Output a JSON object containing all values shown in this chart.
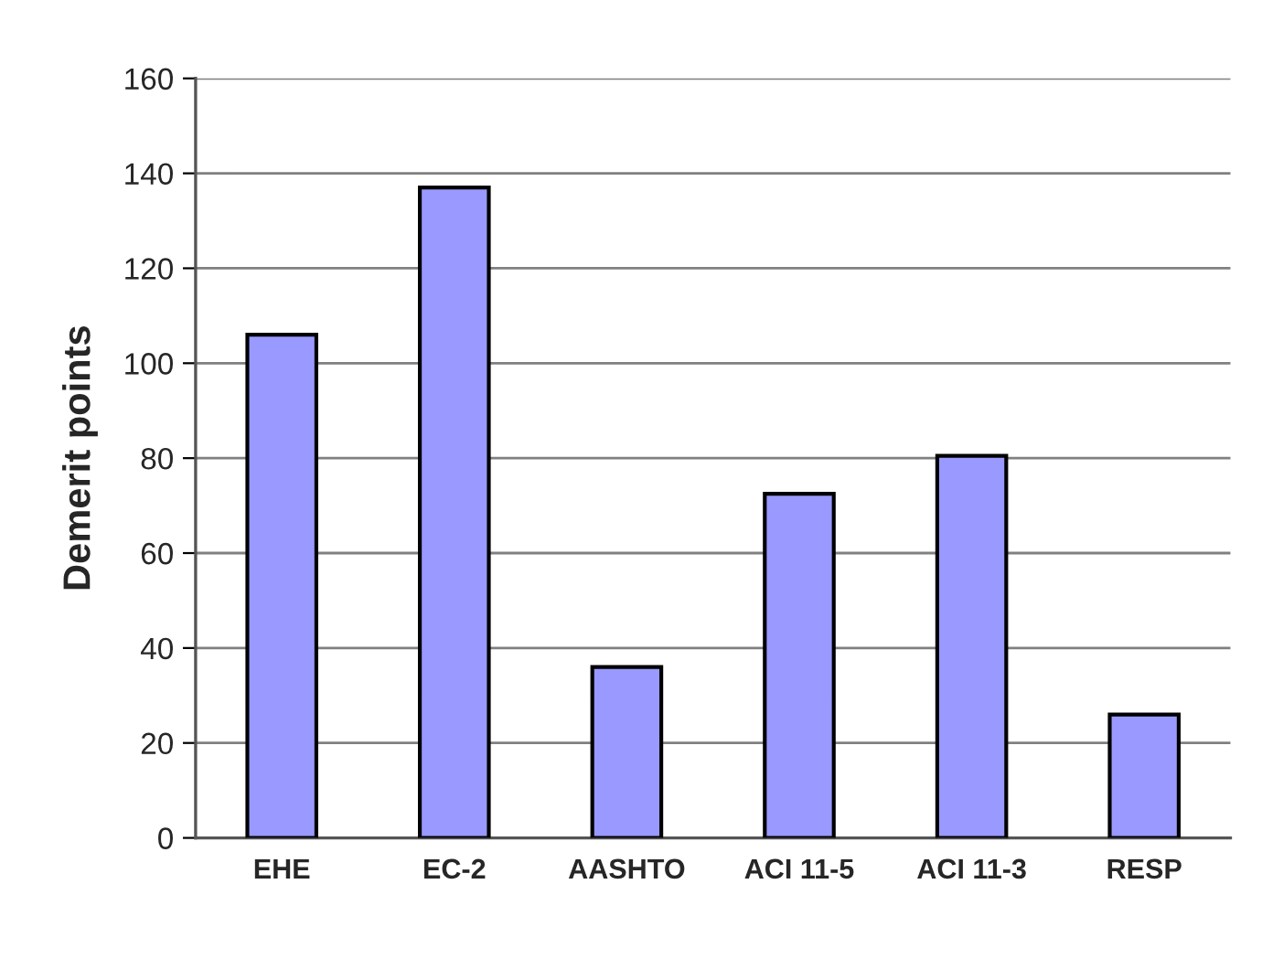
{
  "chart_data": {
    "type": "bar",
    "ylabel": "Demerit points",
    "categories": [
      "EHE",
      "EC-2",
      "AASHTO",
      "ACI 11-5",
      "ACI 11-3",
      "RESP"
    ],
    "values": [
      106,
      137,
      36,
      72.5,
      80.5,
      26
    ],
    "color": "#9999ff",
    "ylim": [
      0,
      160
    ],
    "yticks": [
      0,
      20,
      40,
      60,
      80,
      100,
      120,
      140,
      160
    ],
    "grid": "y"
  }
}
